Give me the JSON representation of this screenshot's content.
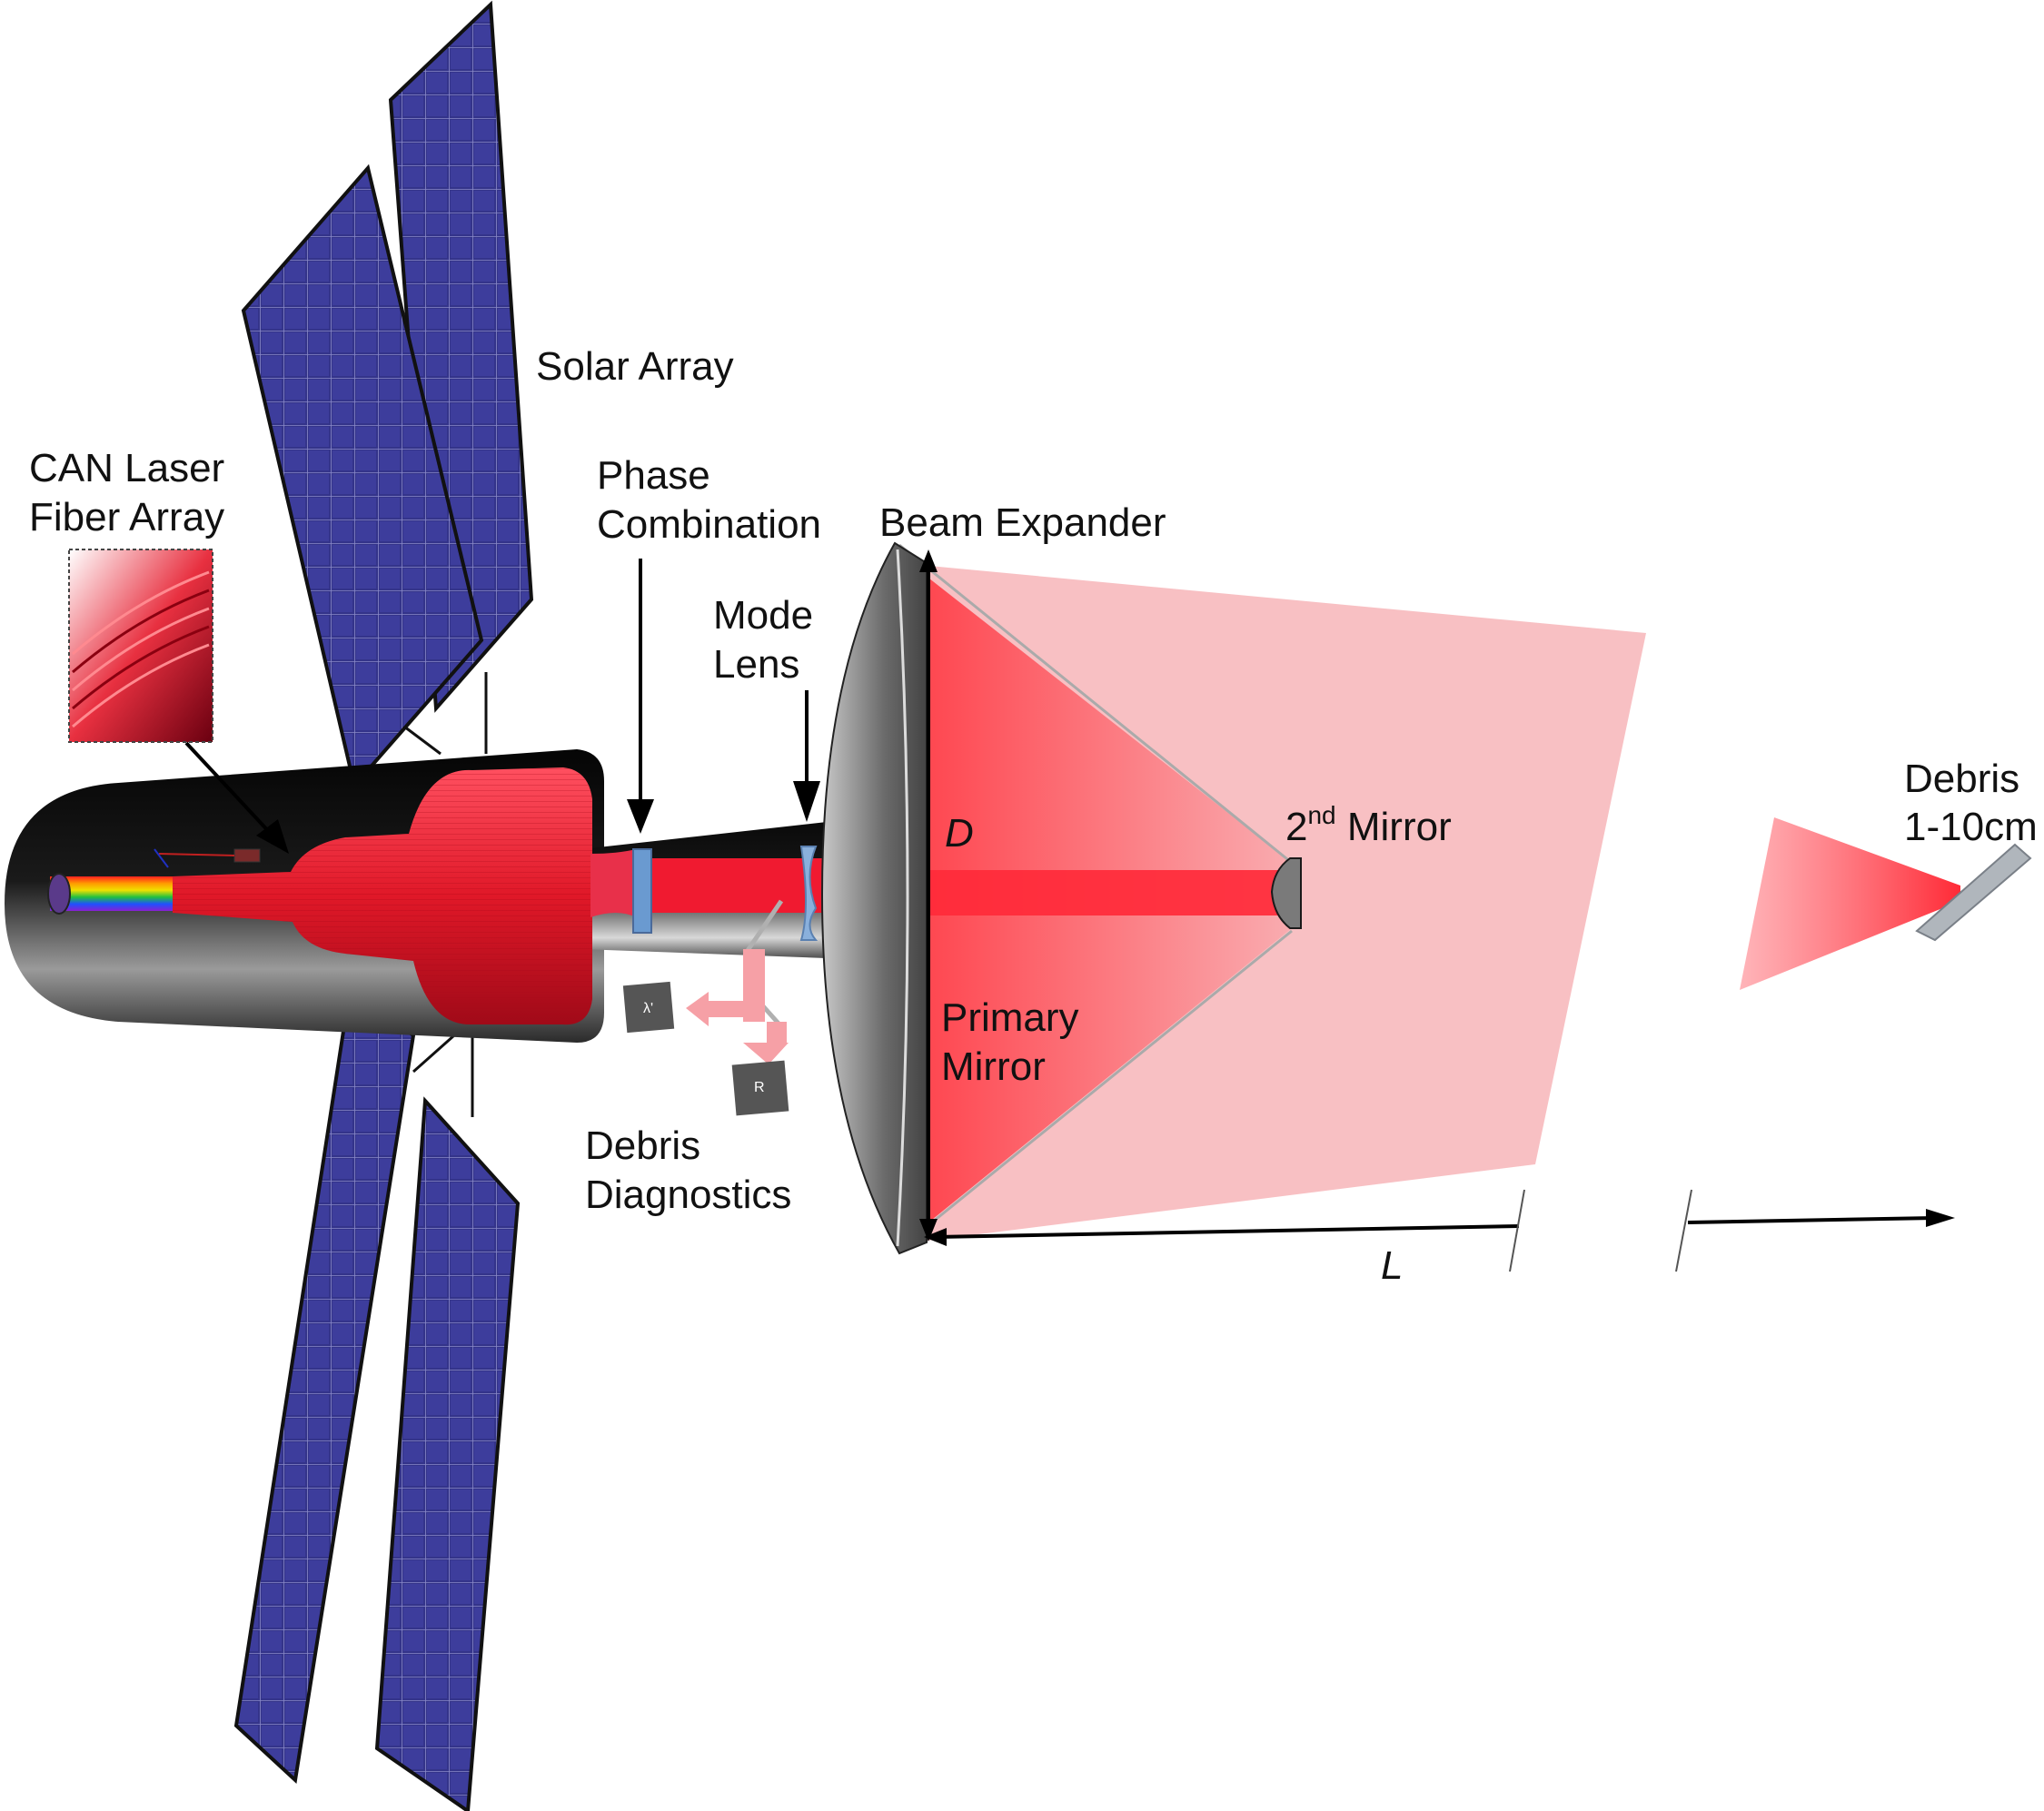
{
  "labels": {
    "solar_array": "Solar Array",
    "can_laser_line1": "CAN Laser",
    "can_laser_line2": "Fiber Array",
    "phase_line1": "Phase",
    "phase_line2": "Combination",
    "beam_expander": "Beam Expander",
    "mode_line1": "Mode",
    "mode_line2": "Lens",
    "second_mirror_num": "2",
    "second_mirror_sup": "nd",
    "second_mirror_rest": " Mirror",
    "primary_line1": "Primary",
    "primary_line2": "Mirror",
    "debris_diag_line1": "Debris",
    "debris_diag_line2": "Diagnostics",
    "debris_line1": "Debris",
    "debris_line2": "1-10cm",
    "dim_D": "D",
    "dim_L": "L",
    "detector_lambda": "λ'",
    "detector_r": "R"
  },
  "colors": {
    "panel_fill": "#34348a",
    "panel_grid": "#8a8ac8",
    "housing": "#0c0c0c",
    "laser_red": "#e8182a",
    "beam_light": "#f8b8bc",
    "beam_core": "#ff2a3a",
    "mirror_gray": "#6e6e6e",
    "lens_blue": "#6a9ad0"
  }
}
